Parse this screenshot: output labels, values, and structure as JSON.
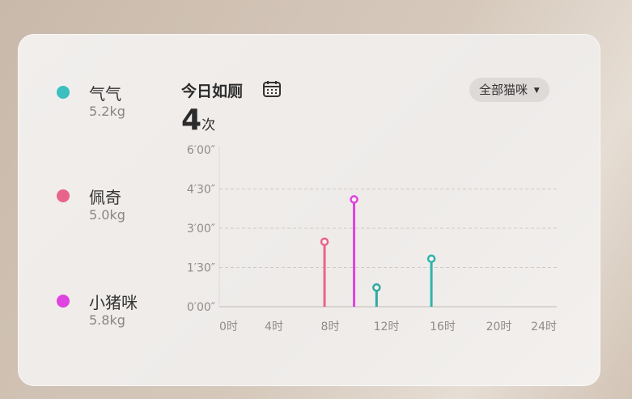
{
  "cats": [
    {
      "name": "气气",
      "weight": "5.2kg",
      "color": "#3bbfc0"
    },
    {
      "name": "佩奇",
      "weight": "5.0kg",
      "color": "#e8648a"
    },
    {
      "name": "小猪咪",
      "weight": "5.8kg",
      "color": "#e044e0"
    }
  ],
  "header": {
    "title": "今日如厕",
    "count": "4",
    "count_unit": "次",
    "calendar_icon": "calendar-icon"
  },
  "filter": {
    "label": "全部猫咪",
    "icon": "caret-down-icon"
  },
  "chart_data": {
    "type": "stem",
    "xlabel": "",
    "ylabel": "",
    "x_ticks": [
      "0时",
      "4时",
      "8时",
      "12时",
      "16时",
      "20时",
      "24时"
    ],
    "x_tick_values": [
      0,
      4,
      8,
      12,
      16,
      20,
      24
    ],
    "xlim": [
      0,
      24
    ],
    "y_ticks": [
      "0′00″",
      "1′30″",
      "3′00″",
      "4′30″",
      "6′00″"
    ],
    "y_tick_values": [
      0,
      90,
      180,
      270,
      360
    ],
    "ylim": [
      0,
      360
    ],
    "grid": "dashed horizontal",
    "points": [
      {
        "cat": "佩奇",
        "hour": 7.6,
        "seconds": 149,
        "color": "#e8648a"
      },
      {
        "cat": "小猪咪",
        "hour": 9.7,
        "seconds": 246,
        "color": "#e044e0"
      },
      {
        "cat": "气气",
        "hour": 11.3,
        "seconds": 44,
        "color": "#2fa9a2"
      },
      {
        "cat": "气气",
        "hour": 15.2,
        "seconds": 110,
        "color": "#2fb3ad"
      }
    ]
  }
}
